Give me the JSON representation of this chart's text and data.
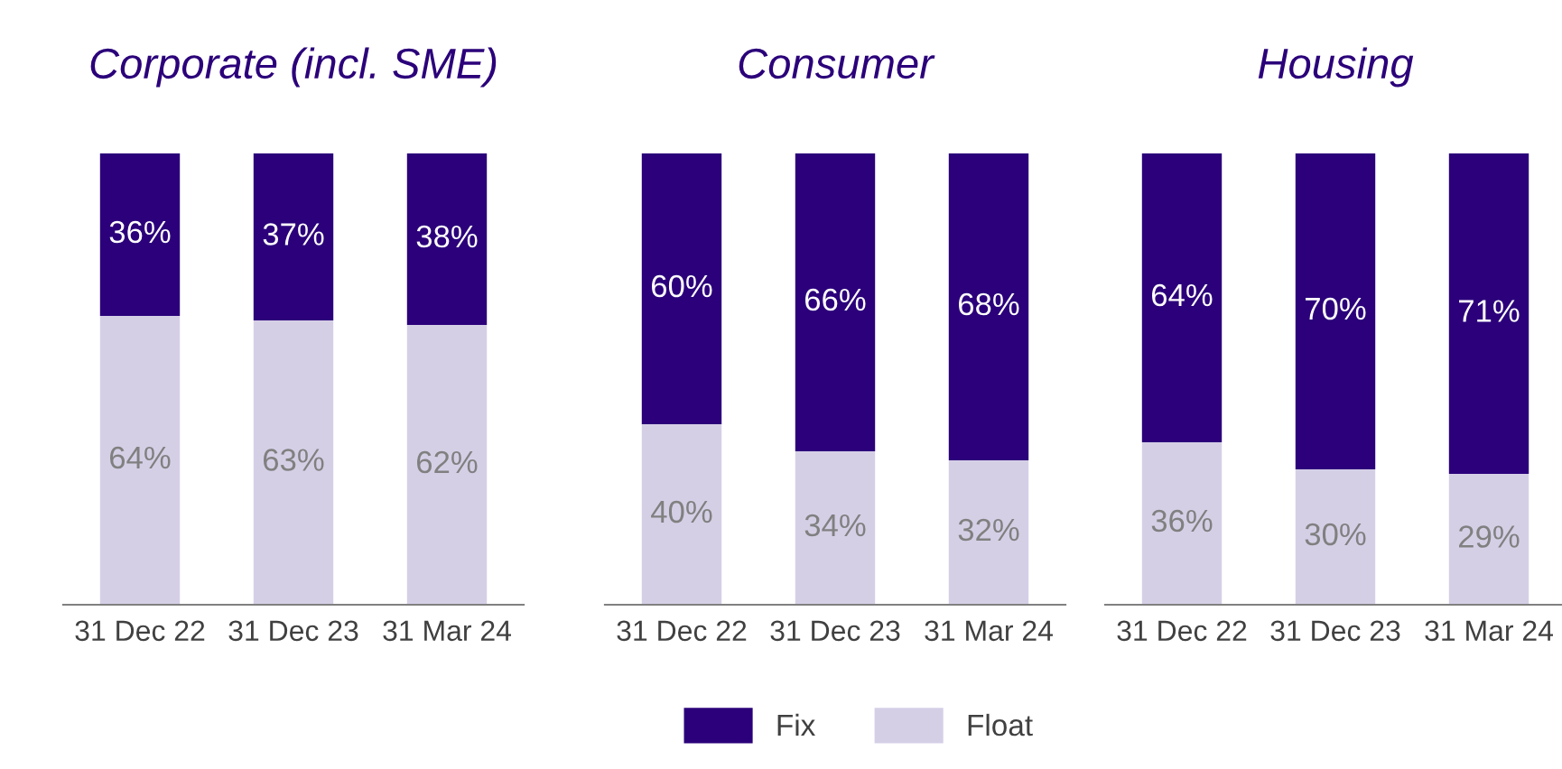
{
  "chart_data": [
    {
      "type": "bar",
      "title": "Corporate (incl. SME)",
      "stacked": true,
      "categories": [
        "31 Dec 22",
        "31 Dec 23",
        "31 Mar 24"
      ],
      "ylim": [
        0,
        100
      ],
      "tick_labels": "x",
      "legend": "bottom",
      "series": [
        {
          "name": "Float",
          "color": "#d5cfe6",
          "values": [
            64,
            63,
            62
          ],
          "value_labels": [
            "64%",
            "63%",
            "62%"
          ]
        },
        {
          "name": "Fix",
          "color": "#2b007a",
          "values": [
            36,
            37,
            38
          ],
          "value_labels": [
            "36%",
            "37%",
            "38%"
          ]
        }
      ]
    },
    {
      "type": "bar",
      "title": "Consumer",
      "stacked": true,
      "categories": [
        "31 Dec 22",
        "31 Dec 23",
        "31 Mar 24"
      ],
      "ylim": [
        0,
        100
      ],
      "tick_labels": "x",
      "legend": "bottom",
      "series": [
        {
          "name": "Float",
          "color": "#d5cfe6",
          "values": [
            40,
            34,
            32
          ],
          "value_labels": [
            "40%",
            "34%",
            "32%"
          ]
        },
        {
          "name": "Fix",
          "color": "#2b007a",
          "values": [
            60,
            66,
            68
          ],
          "value_labels": [
            "60%",
            "66%",
            "68%"
          ]
        }
      ]
    },
    {
      "type": "bar",
      "title": "Housing",
      "stacked": true,
      "categories": [
        "31 Dec 22",
        "31 Dec 23",
        "31 Mar 24"
      ],
      "ylim": [
        0,
        100
      ],
      "tick_labels": "x",
      "legend": "bottom",
      "series": [
        {
          "name": "Float",
          "color": "#d5cfe6",
          "values": [
            36,
            30,
            29
          ],
          "value_labels": [
            "36%",
            "30%",
            "29%"
          ]
        },
        {
          "name": "Fix",
          "color": "#2b007a",
          "values": [
            64,
            70,
            71
          ],
          "value_labels": [
            "64%",
            "70%",
            "71%"
          ]
        }
      ]
    }
  ]
}
